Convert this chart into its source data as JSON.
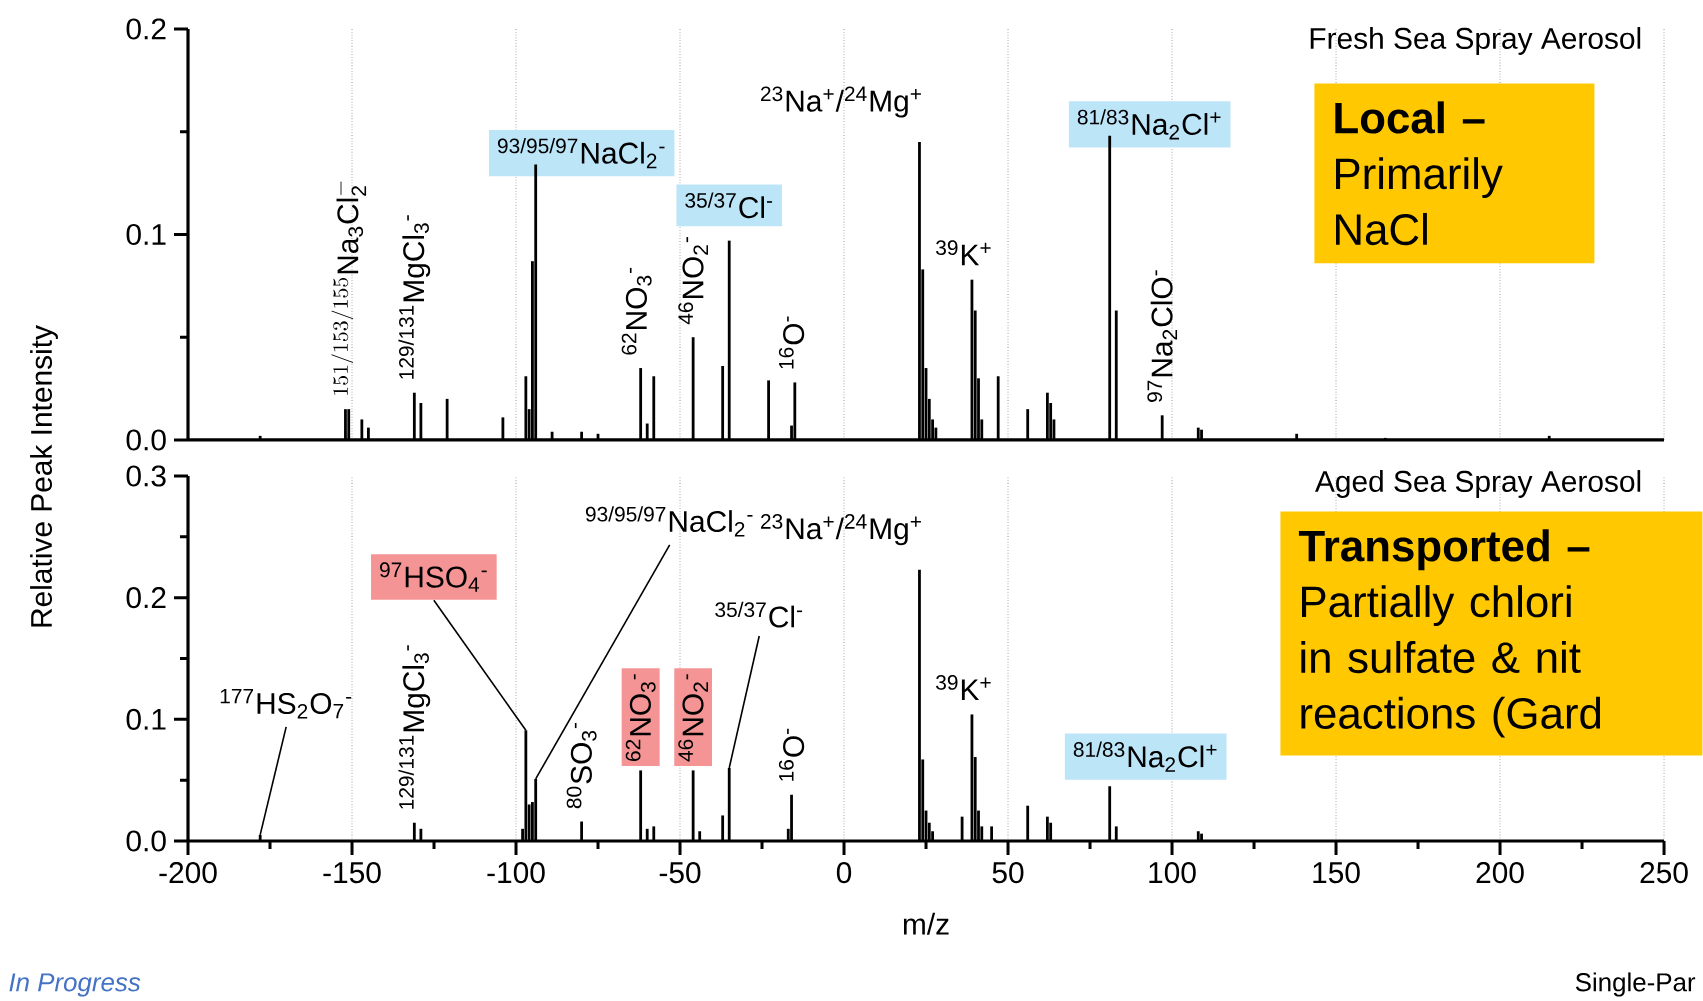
{
  "chart_data": [
    {
      "type": "bar",
      "title": "Fresh Sea Spray Aerosol",
      "color": "#000000",
      "grid": "x",
      "tick_labels": "y",
      "x": [
        -178,
        -152,
        -151,
        -147,
        -145,
        -131,
        -129,
        -121,
        -104,
        -97,
        -96,
        -95,
        -94,
        -89,
        -80,
        -75,
        -62,
        -60,
        -58,
        -46,
        -37,
        -35,
        -23,
        -16,
        -15,
        23,
        24,
        25,
        26,
        27,
        28,
        39,
        40,
        41,
        42,
        47,
        56,
        62,
        63,
        64,
        81,
        83,
        97,
        108,
        109,
        138,
        165,
        215
      ],
      "values": [
        0.002,
        0.015,
        0.015,
        0.01,
        0.006,
        0.023,
        0.018,
        0.02,
        0.011,
        0.031,
        0.015,
        0.087,
        0.134,
        0.004,
        0.004,
        0.003,
        0.035,
        0.008,
        0.031,
        0.05,
        0.036,
        0.097,
        0.029,
        0.007,
        0.028,
        0.145,
        0.083,
        0.035,
        0.02,
        0.01,
        0.006,
        0.078,
        0.063,
        0.03,
        0.01,
        0.031,
        0.015,
        0.023,
        0.018,
        0.01,
        0.148,
        0.063,
        0.012,
        0.006,
        0.005,
        0.003,
        0.001,
        0.002
      ],
      "xlim": [
        -200,
        250
      ],
      "xticks": [
        -200,
        -150,
        -100,
        -50,
        0,
        50,
        100,
        150,
        200,
        250
      ],
      "ylim": [
        0,
        0.2
      ],
      "yticks": [
        {
          "value": 0,
          "label": "0.0"
        },
        {
          "value": 0.05,
          "label": null
        },
        0.1,
        {
          "value": 0.15,
          "label": null
        },
        0.2
      ],
      "annotations": [
        {
          "text": "^{151/153/155}\\mathrm{Na_{3}Cl_{2}^{-}}",
          "x": -151,
          "y": 0.015
        },
        {
          "text": "$^{129/131}$MgCl$_{3}$$^{-}$",
          "x": -131,
          "y": 0.023
        },
        {
          "text": "$^{93/95/97}$NaCl$_{2}$$^{-}$",
          "x": -94,
          "y": 0.134
        },
        {
          "text": "$^{62}$NO$_{3}$$^{-}$",
          "x": -62,
          "y": 0.035
        },
        {
          "text": "$^{46}$NO$_{2}$$^{-}$",
          "x": -46,
          "y": 0.05
        },
        {
          "text": "$^{35/37}$Cl$^{-}$",
          "x": -35,
          "y": 0.097
        },
        {
          "text": "$^{16}$O$^{-}$",
          "x": -16,
          "y": 0.028
        },
        {
          "text": "$^{23}$Na$^{+}$/$^{24}$Mg$^{+}$",
          "x": 23,
          "y": 0.145
        },
        {
          "text": "$^{39}$K$^{+}$",
          "x": 39,
          "y": 0.078
        },
        {
          "text": "$^{81/83}$Na$_{2}$Cl$^{+}$",
          "x": 81,
          "y": 0.148
        },
        {
          "text": "$^{97}$Na$_{2}$ClO$^{-}$",
          "x": 97,
          "y": 0.012
        },
        "**Local –** Primarily NaCl"
      ]
    },
    {
      "type": "bar",
      "title": "Aged Sea Spray Aerosol",
      "color": "#000000",
      "grid": "x",
      "xlabel": "m/z",
      "ylabel": "Relative Peak Intensity",
      "x": [
        -178,
        -131,
        -129,
        -98,
        -97,
        -96,
        -95,
        -94,
        -80,
        -62,
        -60,
        -58,
        -46,
        -44,
        -37,
        -35,
        -17,
        -16,
        23,
        24,
        25,
        26,
        27,
        36,
        39,
        40,
        41,
        42,
        45,
        56,
        62,
        63,
        81,
        83,
        108,
        109
      ],
      "values": [
        0.005,
        0.015,
        0.01,
        0.01,
        0.091,
        0.03,
        0.032,
        0.051,
        0.016,
        0.058,
        0.01,
        0.012,
        0.058,
        0.008,
        0.021,
        0.06,
        0.01,
        0.038,
        0.223,
        0.067,
        0.025,
        0.015,
        0.008,
        0.02,
        0.104,
        0.069,
        0.025,
        0.012,
        0.012,
        0.029,
        0.02,
        0.015,
        0.045,
        0.012,
        0.008,
        0.006
      ],
      "xlim": [
        -200,
        250
      ],
      "xticks": [
        -200,
        {
          "value": -175,
          "label": null
        },
        -150,
        {
          "value": -125,
          "label": null
        },
        -100,
        {
          "value": -75,
          "label": null
        },
        -50,
        {
          "value": -25,
          "label": null
        },
        0,
        {
          "value": 25,
          "label": null
        },
        50,
        {
          "value": 75,
          "label": null
        },
        100,
        {
          "value": 125,
          "label": null
        },
        150,
        {
          "value": 175,
          "label": null
        },
        200,
        {
          "value": 225,
          "label": null
        },
        250
      ],
      "ylim": [
        0,
        0.3
      ],
      "yticks": [
        {
          "value": 0,
          "label": "0.0"
        },
        {
          "value": 0.05,
          "label": null
        },
        0.1,
        {
          "value": 0.15,
          "label": null
        },
        0.2,
        {
          "value": 0.25,
          "label": null
        },
        0.3
      ],
      "annotations": [
        {
          "text": "$^{177}$HS$_{2}$O$_{7}$$^{-}$",
          "x": -178,
          "y": 0.005
        },
        {
          "text": "$^{129/131}$MgCl$_{3}$$^{-}$",
          "x": -131,
          "y": 0.015
        },
        {
          "text": "$^{97}$HSO$_{4}$$^{-}$",
          "x": -97,
          "y": 0.091
        },
        {
          "text": "$^{93/95/97}$NaCl$_{2}$$^{-}$",
          "x": -94,
          "y": 0.051
        },
        {
          "text": "$^{80}$SO$_{3}$$^{-}$",
          "x": -80,
          "y": 0.016
        },
        {
          "text": "$^{62}$NO$_{3}$$^{-}$",
          "x": -62,
          "y": 0.058
        },
        {
          "text": "$^{46}$NO$_{2}$$^{-}$",
          "x": -46,
          "y": 0.058
        },
        {
          "text": "$^{35/37}$Cl$^{-}$",
          "x": -35,
          "y": 0.06
        },
        {
          "text": "$^{16}$O$^{-}$",
          "x": -16,
          "y": 0.038
        },
        {
          "text": "$^{23}$Na$^{+}$/$^{24}$Mg$^{+}$",
          "x": 23,
          "y": 0.223
        },
        {
          "text": "$^{39}$K$^{+}$",
          "x": 39,
          "y": 0.104
        },
        {
          "text": "$^{81/83}$Na$_{2}$Cl$^{+}$",
          "x": 81,
          "y": 0.045
        },
        "**Transported –** Partially chlori in sulfate & nit reactions (Gard",
        "In Progress",
        "Single-Par"
      ]
    }
  ]
}
